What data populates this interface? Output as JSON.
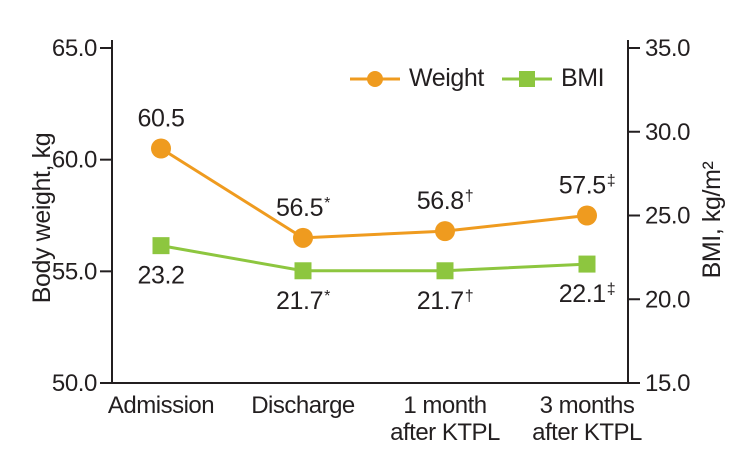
{
  "colors": {
    "weight_orange": "#EF9B1F",
    "bmi_green": "#8DC63F",
    "axis_ink": "#231F20",
    "background": "#FFFFFF"
  },
  "legend": {
    "items": [
      {
        "label": "Weight",
        "marker": "circle",
        "color": "#EF9B1F"
      },
      {
        "label": "BMI",
        "marker": "square",
        "color": "#8DC63F"
      }
    ]
  },
  "chart_data": {
    "type": "line",
    "title": "",
    "categories": [
      "Admission",
      "Discharge",
      "1 month\nafter KTPL",
      "3 months\nafter KTPL"
    ],
    "series": [
      {
        "name": "Weight",
        "axis": "left",
        "marker": "circle",
        "color": "#EF9B1F",
        "values": [
          60.5,
          56.5,
          56.8,
          57.5
        ],
        "point_labels": [
          {
            "value": "60.5",
            "mark": ""
          },
          {
            "value": "56.5",
            "mark": "*"
          },
          {
            "value": "56.8",
            "mark": "†"
          },
          {
            "value": "57.5",
            "mark": "‡"
          }
        ],
        "label_position": "above"
      },
      {
        "name": "BMI",
        "axis": "right",
        "marker": "square",
        "color": "#8DC63F",
        "values": [
          23.2,
          21.7,
          21.7,
          22.1
        ],
        "point_labels": [
          {
            "value": "23.2",
            "mark": ""
          },
          {
            "value": "21.7",
            "mark": "*"
          },
          {
            "value": "21.7",
            "mark": "†"
          },
          {
            "value": "22.1",
            "mark": "‡"
          }
        ],
        "label_position": "below"
      }
    ],
    "left_axis": {
      "label": "Body weight, kg",
      "min": 50.0,
      "max": 65.0,
      "tick_values": [
        65.0,
        60.0,
        55.0,
        50.0
      ],
      "tick_labels": [
        "65.0",
        "60.0",
        "55.0",
        "50.0"
      ]
    },
    "right_axis": {
      "label": "BMI, kg/m²",
      "min": 15.0,
      "max": 35.0,
      "tick_values": [
        35.0,
        30.0,
        25.0,
        20.0,
        15.0
      ],
      "tick_labels": [
        "35.0",
        "30.0",
        "25.0",
        "20.0",
        "15.0"
      ]
    },
    "grid": false,
    "legend_position": "top-inside"
  }
}
